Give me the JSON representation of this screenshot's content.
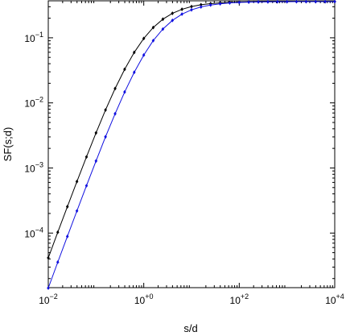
{
  "chart_data": {
    "type": "line",
    "xlabel": "s/d",
    "ylabel": "SF(s;d)",
    "xscale": "log",
    "yscale": "log",
    "xlim": [
      0.01,
      10000
    ],
    "ylim": [
      1.45e-05,
      0.37
    ],
    "xticks": [
      {
        "value": 0.01,
        "label": "10−2"
      },
      {
        "value": 1,
        "label": "10+0"
      },
      {
        "value": 100,
        "label": "10+2"
      },
      {
        "value": 10000,
        "label": "10+4"
      }
    ],
    "yticks": [
      {
        "value": 0.0001,
        "label": "10−4"
      },
      {
        "value": 0.001,
        "label": "10−3"
      },
      {
        "value": 0.01,
        "label": "10−2"
      },
      {
        "value": 0.1,
        "label": "10−1"
      }
    ],
    "x": [
      0.01,
      0.0158,
      0.0251,
      0.0398,
      0.0631,
      0.1,
      0.158,
      0.251,
      0.398,
      0.631,
      1,
      1.58,
      2.51,
      3.98,
      6.31,
      10,
      15.8,
      25.1,
      39.8,
      63.1,
      100,
      158,
      251,
      398,
      631,
      1000,
      1580,
      2510,
      3980,
      6310,
      10000
    ],
    "series": [
      {
        "color": "#000000",
        "values": [
          4.16e-05,
          0.000103,
          0.000254,
          0.000619,
          0.00148,
          0.00346,
          0.00778,
          0.0166,
          0.0328,
          0.0596,
          0.0977,
          0.144,
          0.193,
          0.2375,
          0.274,
          0.302,
          0.322,
          0.335,
          0.344,
          0.35,
          0.3535,
          0.356,
          0.357,
          0.358,
          0.359,
          0.3593,
          0.3596,
          0.3597,
          0.3598,
          0.3599,
          0.3599
        ]
      },
      {
        "color": "#1010e0",
        "values": [
          1.43e-05,
          3.57e-05,
          8.87e-05,
          0.000219,
          0.000534,
          0.00128,
          0.00301,
          0.00681,
          0.0147,
          0.0295,
          0.0543,
          0.0906,
          0.136,
          0.185,
          0.231,
          0.269,
          0.298,
          0.319,
          0.333,
          0.343,
          0.349,
          0.353,
          0.3555,
          0.357,
          0.358,
          0.3589,
          0.3593,
          0.3596,
          0.3597,
          0.3598,
          0.3599
        ]
      }
    ]
  }
}
